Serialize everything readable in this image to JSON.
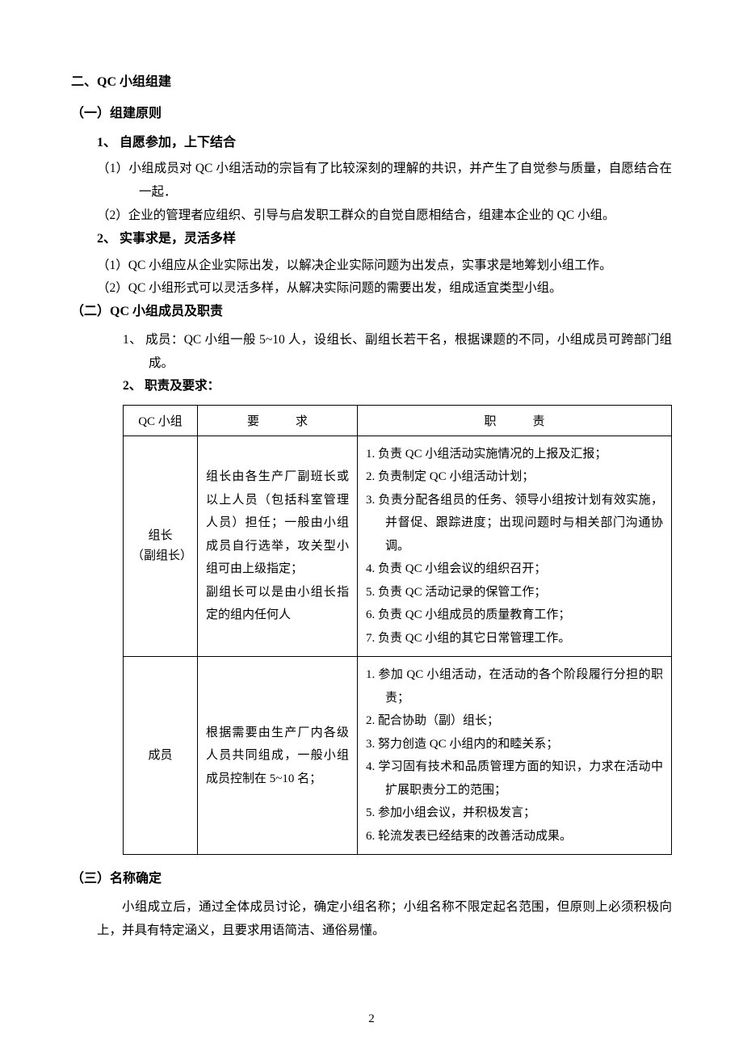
{
  "colors": {
    "text": "#000000",
    "background": "#ffffff",
    "border": "#000000"
  },
  "typography": {
    "bodyFontSize": 15.5,
    "tableFontSize": 15,
    "headingFontSize": 16,
    "lineHeight": 1.85,
    "family": "SimSun"
  },
  "section2": {
    "title": "二、QC 小组组建",
    "sub1": {
      "title": "（一）组建原则",
      "item1": {
        "title": "1、 自愿参加，上下结合",
        "p1": "（1）小组成员对 QC 小组活动的宗旨有了比较深刻的理解的共识，并产生了自觉参与质量，自愿结合在一起．",
        "p2": "（2）企业的管理者应组织、引导与启发职工群众的自觉自愿相结合，组建本企业的 QC 小组。"
      },
      "item2": {
        "title": "2、 实事求是，灵活多样",
        "p1": "（1）QC 小组应从企业实际出发，以解决企业实际问题为出发点，实事求是地筹划小组工作。",
        "p2": "（2）QC 小组形式可以灵活多样，从解决实际问题的需要出发，组成适宜类型小组。"
      }
    },
    "sub2": {
      "title": "（二）QC 小组成员及职责",
      "item1": "1、 成员：QC 小组一般 5~10 人，设组长、副组长若干名，根据课题的不同，小组成员可跨部门组成。",
      "item2": "2、 职责及要求：",
      "table": {
        "columns": [
          "QC 小组",
          "要　求",
          "职　责"
        ],
        "rows": [
          {
            "role": "组长\n（副组长）",
            "req": "组长由各生产厂副班长或以上人员（包括科室管理人员）担任；一般由小组成员自行选举，攻关型小组可由上级指定；\n副组长可以是由小组长指定的组内任何人",
            "duties": [
              "1.  负责 QC 小组活动实施情况的上报及汇报；",
              "2.  负责制定 QC 小组活动计划；",
              "3.  负责分配各组员的任务、领导小组按计划有效实施，并督促、跟踪进度；出现问题时与相关部门沟通协调。",
              "4.  负责 QC 小组会议的组织召开；",
              "5.  负责 QC 活动记录的保管工作；",
              "6.  负责 QC 小组成员的质量教育工作；",
              "7.  负责 QC 小组的其它日常管理工作。"
            ]
          },
          {
            "role": "成员",
            "req": "根据需要由生产厂内各级人员共同组成，一般小组成员控制在 5~10 名；",
            "duties": [
              "1.  参加 QC 小组活动，在活动的各个阶段履行分担的职责；",
              "2.  配合协助（副）组长；",
              "3.  努力创造 QC 小组内的和睦关系；",
              "4.  学习固有技术和品质管理方面的知识，力求在活动中扩展职责分工的范围；",
              "5.  参加小组会议，并积极发言；",
              "6.  轮流发表已经结束的改善活动成果。"
            ]
          }
        ]
      }
    },
    "sub3": {
      "title": "（三）名称确定",
      "p": "小组成立后，通过全体成员讨论，确定小组名称；小组名称不限定起名范围，但原则上必须积极向上，并具有特定涵义，且要求用语简洁、通俗易懂。"
    }
  },
  "pageNumber": "2"
}
